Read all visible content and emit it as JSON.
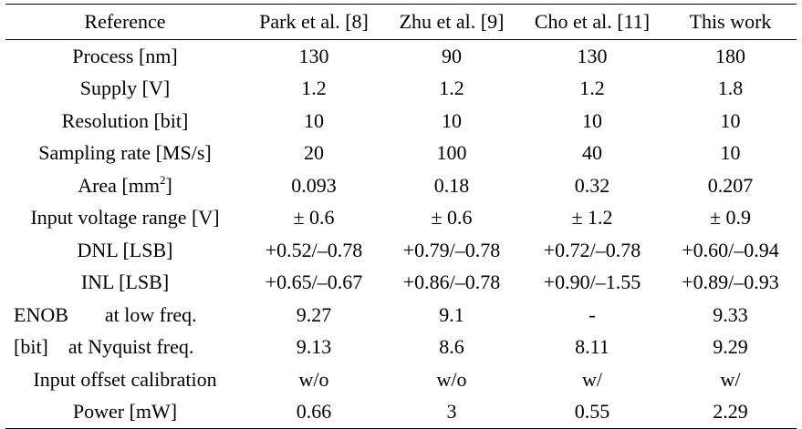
{
  "table": {
    "header": [
      "Reference",
      "Park et al. [8]",
      "Zhu et al. [9]",
      "Cho et al. [11]",
      "This work"
    ],
    "rows": [
      {
        "label": "Process [nm]",
        "values": [
          "130",
          "90",
          "130",
          "180"
        ]
      },
      {
        "label": "Supply [V]",
        "values": [
          "1.2",
          "1.2",
          "1.2",
          "1.8"
        ]
      },
      {
        "label": "Resolution [bit]",
        "values": [
          "10",
          "10",
          "10",
          "10"
        ]
      },
      {
        "label": "Sampling rate [MS/s]",
        "values": [
          "20",
          "100",
          "40",
          "10"
        ]
      },
      {
        "label_pre": "Area [mm",
        "label_sup": "2",
        "label_post": "]",
        "values": [
          "0.093",
          "0.18",
          "0.32",
          "0.207"
        ]
      },
      {
        "label": "Input voltage range [V]",
        "values": [
          "± 0.6",
          "± 0.6",
          "± 1.2",
          "± 0.9"
        ]
      },
      {
        "label": "DNL [LSB]",
        "values": [
          "+0.52/–0.78",
          "+0.79/–0.78",
          "+0.72/–0.78",
          "+0.60/–0.94"
        ]
      },
      {
        "label": "INL [LSB]",
        "values": [
          "+0.65/–0.67",
          "+0.86/–0.78",
          "+0.90/–1.55",
          "+0.89/–0.93"
        ]
      },
      {
        "label_main": "ENOB",
        "label_sub": "at low freq.",
        "values": [
          "9.27",
          "9.1",
          "-",
          "9.33"
        ]
      },
      {
        "label_main": "[bit]",
        "label_sub": "at Nyquist freq.",
        "values": [
          "9.13",
          "8.6",
          "8.11",
          "9.29"
        ]
      },
      {
        "label": "Input offset calibration",
        "values": [
          "w/o",
          "w/o",
          "w/",
          "w/"
        ]
      },
      {
        "label": "Power [mW]",
        "values": [
          "0.66",
          "3",
          "0.55",
          "2.29"
        ]
      }
    ]
  }
}
